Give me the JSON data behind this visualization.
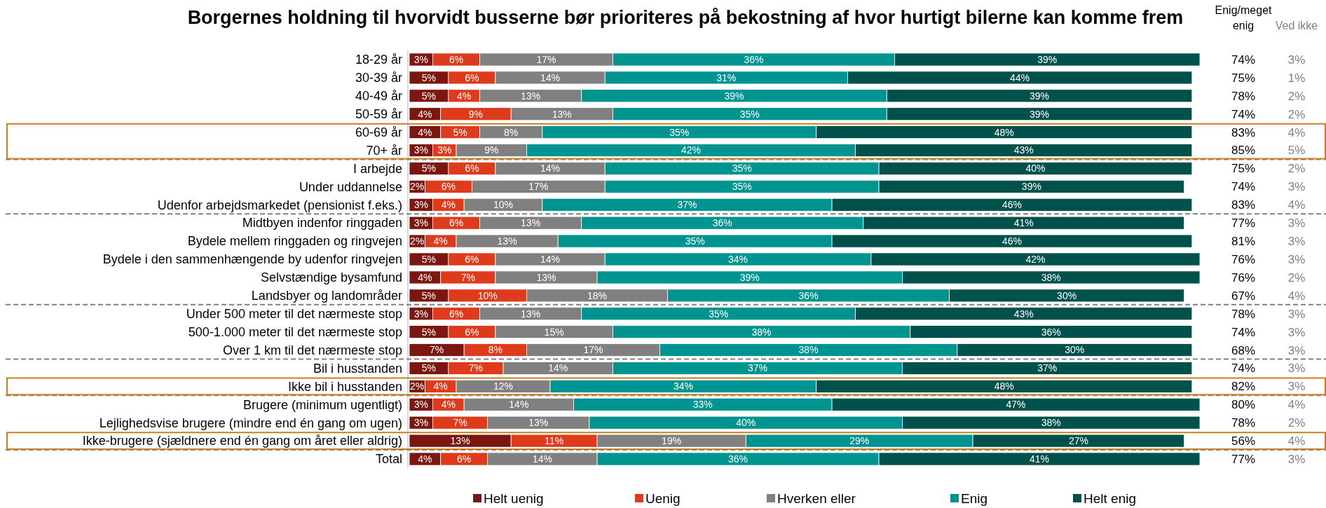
{
  "chart_data": [
    {
      "type": "bar",
      "orientation": "horizontal",
      "stacked": true,
      "title": "Borgernes holdning til hvorvidt busserne bør prioriteres på bekostning af hvor hurtigt bilerne kan komme frem",
      "categories": [
        "18-29 år",
        "30-39 år",
        "40-49 år",
        "50-59 år",
        "60-69 år",
        "70+ år",
        "I arbejde",
        "Under uddannelse",
        "Udenfor arbejdsmarkedet (pensionist f.eks.)",
        "Midtbyen indenfor ringgaden",
        "Bydele mellem ringgaden og ringvejen",
        "Bydele i den sammenhængende by udenfor ringvejen",
        "Selvstændige bysamfund",
        "Landsbyer og landområder",
        "Under 500 meter til det nærmeste stop",
        "500-1.000 meter til det nærmeste stop",
        "Over 1 km til det nærmeste stop",
        "Bil i husstanden",
        "Ikke bil i husstanden",
        "Brugere (minimum ugentligt)",
        "Lejlighedsvise brugere (mindre end én gang om ugen)",
        "Ikke-brugere (sjældnere end én gang om året eller aldrig)",
        "Total"
      ],
      "series": [
        {
          "name": "Helt uenig",
          "color": "#7b1710",
          "values": [
            3,
            5,
            5,
            4,
            4,
            3,
            5,
            2,
            3,
            3,
            2,
            5,
            4,
            5,
            3,
            5,
            7,
            5,
            2,
            3,
            3,
            13,
            4
          ],
          "value_labels": [
            "3%",
            "5%",
            "5%",
            "4%",
            "4%",
            "3%",
            "5%",
            "2%",
            "3%",
            "3%",
            "2%",
            "5%",
            "4%",
            "5%",
            "3%",
            "5%",
            "7%",
            "5%",
            "2%",
            "3%",
            "3%",
            "13%",
            "4%"
          ]
        },
        {
          "name": "Uenig",
          "color": "#de3a1c",
          "values": [
            6,
            6,
            4,
            9,
            5,
            3,
            6,
            6,
            4,
            6,
            4,
            6,
            7,
            10,
            6,
            6,
            8,
            7,
            4,
            4,
            7,
            11,
            6
          ],
          "value_labels": [
            "6%",
            "6%",
            "4%",
            "9%",
            "5%",
            "3%",
            "6%",
            "6%",
            "4%",
            "6%",
            "4%",
            "6%",
            "7%",
            "10%",
            "6%",
            "6%",
            "8%",
            "7%",
            "4%",
            "4%",
            "7%",
            "11%",
            "6%"
          ]
        },
        {
          "name": "Hverken eller",
          "color": "#808080",
          "values": [
            17,
            14,
            13,
            13,
            8,
            9,
            14,
            17,
            10,
            13,
            13,
            14,
            13,
            18,
            13,
            15,
            17,
            14,
            12,
            14,
            13,
            19,
            14
          ],
          "value_labels": [
            "17%",
            "14%",
            "13%",
            "13%",
            "8%",
            "9%",
            "14%",
            "17%",
            "10%",
            "13%",
            "13%",
            "14%",
            "13%",
            "18%",
            "13%",
            "15%",
            "17%",
            "14%",
            "12%",
            "14%",
            "13%",
            "19%",
            "14%"
          ]
        },
        {
          "name": "Enig",
          "color": "#009490",
          "values": [
            36,
            31,
            39,
            35,
            35,
            42,
            35,
            35,
            37,
            36,
            35,
            34,
            39,
            36,
            35,
            38,
            38,
            37,
            34,
            33,
            40,
            29,
            36
          ],
          "value_labels": [
            "36%",
            "31%",
            "39%",
            "35%",
            "35%",
            "42%",
            "35%",
            "35%",
            "37%",
            "36%",
            "35%",
            "34%",
            "39%",
            "36%",
            "35%",
            "38%",
            "38%",
            "37%",
            "34%",
            "33%",
            "40%",
            "29%",
            "36%"
          ]
        },
        {
          "name": "Helt enig",
          "color": "#00514c",
          "values": [
            39,
            44,
            39,
            39,
            48,
            43,
            40,
            39,
            46,
            41,
            46,
            42,
            38,
            30,
            43,
            36,
            30,
            37,
            48,
            47,
            38,
            27,
            41
          ],
          "value_labels": [
            "39%",
            "44%",
            "39%",
            "39%",
            "48%",
            "43%",
            "40%",
            "39%",
            "46%",
            "41%",
            "46%",
            "42%",
            "38%",
            "30%",
            "43%",
            "36%",
            "30%",
            "37%",
            "48%",
            "47%",
            "38%",
            "27%",
            "41%"
          ]
        }
      ],
      "tick_labels": "y",
      "legend": "bottom"
    },
    {
      "type": "other",
      "annotations": [
        "Enig/meget enig",
        "74%",
        "75%",
        "78%",
        "74%",
        "83%",
        "85%",
        "75%",
        "74%",
        "83%",
        "77%",
        "81%",
        "76%",
        "76%",
        "67%",
        "78%",
        "74%",
        "68%",
        "74%",
        "82%",
        "80%",
        "78%",
        "56%",
        "77%",
        "Ved ikke",
        "3%",
        "1%",
        "2%",
        "2%",
        "4%",
        "5%",
        "2%",
        "3%",
        "4%",
        "3%",
        "3%",
        "3%",
        "2%",
        "4%",
        "3%",
        "3%",
        "3%",
        "3%",
        "3%",
        "4%",
        "2%",
        "4%",
        "3%"
      ]
    }
  ]
}
